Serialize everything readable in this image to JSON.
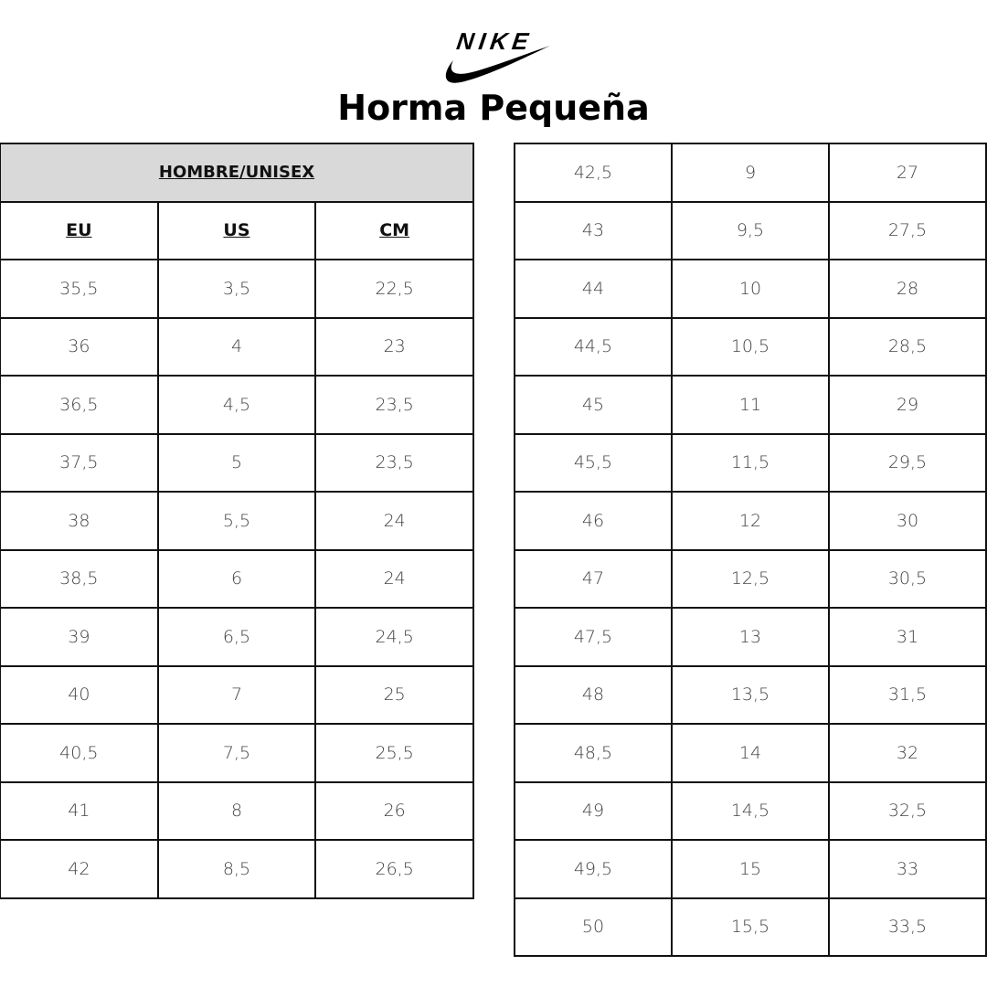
{
  "logo": {
    "text": "NIKE",
    "icon": "nike-swoosh-logo"
  },
  "title": "Horma Pequeña",
  "left_table": {
    "group_header": "HOMBRE/UNISEX",
    "columns": [
      "EU",
      "US",
      "CM"
    ],
    "rows": [
      [
        "35,5",
        "3,5",
        "22,5"
      ],
      [
        "36",
        "4",
        "23"
      ],
      [
        "36,5",
        "4,5",
        "23,5"
      ],
      [
        "37,5",
        "5",
        "23,5"
      ],
      [
        "38",
        "5,5",
        "24"
      ],
      [
        "38,5",
        "6",
        "24"
      ],
      [
        "39",
        "6,5",
        "24,5"
      ],
      [
        "40",
        "7",
        "25"
      ],
      [
        "40,5",
        "7,5",
        "25,5"
      ],
      [
        "41",
        "8",
        "26"
      ],
      [
        "42",
        "8,5",
        "26,5"
      ]
    ]
  },
  "right_table": {
    "rows": [
      [
        "42,5",
        "9",
        "27"
      ],
      [
        "43",
        "9,5",
        "27,5"
      ],
      [
        "44",
        "10",
        "28"
      ],
      [
        "44,5",
        "10,5",
        "28,5"
      ],
      [
        "45",
        "11",
        "29"
      ],
      [
        "45,5",
        "11,5",
        "29,5"
      ],
      [
        "46",
        "12",
        "30"
      ],
      [
        "47",
        "12,5",
        "30,5"
      ],
      [
        "47,5",
        "13",
        "31"
      ],
      [
        "48",
        "13,5",
        "31,5"
      ],
      [
        "48,5",
        "14",
        "32"
      ],
      [
        "49",
        "14,5",
        "32,5"
      ],
      [
        "49,5",
        "15",
        "33"
      ],
      [
        "50",
        "15,5",
        "33,5"
      ]
    ]
  }
}
